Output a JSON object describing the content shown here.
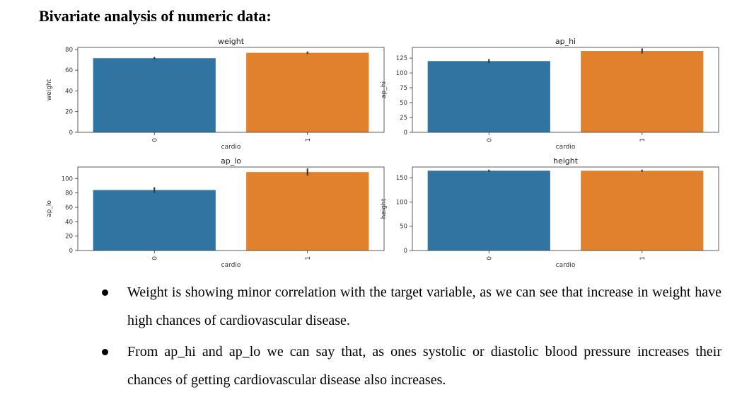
{
  "heading": "Bivariate analysis of numeric data:",
  "colors": {
    "class0": "#3274a1",
    "class1": "#e1812c",
    "errorbar": "#3a3a3a",
    "axis": "#333333"
  },
  "chart_data": [
    {
      "type": "bar",
      "title": "weight",
      "xlabel": "cardio",
      "ylabel": "weight",
      "categories": [
        "0",
        "1"
      ],
      "values": [
        71.6,
        76.8
      ],
      "errors": [
        0.2,
        0.2
      ],
      "ylim": [
        0,
        82
      ],
      "yticks": [
        0,
        20,
        40,
        60,
        80
      ],
      "show_xlabel": true,
      "grid": false
    },
    {
      "type": "bar",
      "title": "ap_hi",
      "xlabel": "cardio",
      "ylabel": "ap_hi",
      "categories": [
        "0",
        "1"
      ],
      "values": [
        120,
        137
      ],
      "errors": [
        1.5,
        2.5
      ],
      "ylim": [
        0,
        143
      ],
      "yticks": [
        0,
        25,
        50,
        75,
        100,
        125
      ],
      "show_xlabel": true,
      "grid": false
    },
    {
      "type": "bar",
      "title": "ap_lo",
      "xlabel": "cardio",
      "ylabel": "ap_lo",
      "categories": [
        "0",
        "1"
      ],
      "values": [
        84,
        109
      ],
      "errors": [
        2.5,
        3.5
      ],
      "ylim": [
        0,
        116
      ],
      "yticks": [
        0,
        20,
        40,
        60,
        80,
        100
      ],
      "show_xlabel": true,
      "grid": false
    },
    {
      "type": "bar",
      "title": "height",
      "xlabel": "cardio",
      "ylabel": "height",
      "categories": [
        "0",
        "1"
      ],
      "values": [
        164.4,
        164.3
      ],
      "errors": [
        0.1,
        0.1
      ],
      "ylim": [
        0,
        172
      ],
      "yticks": [
        0,
        50,
        100,
        150
      ],
      "show_xlabel": true,
      "grid": false
    }
  ],
  "bullets": [
    "Weight is showing minor correlation with the target variable, as we can see that increase in weight have high chances of cardiovascular disease.",
    "From ap_hi and ap_lo we can say that, as ones systolic or diastolic blood pressure increases their chances of getting cardiovascular disease also increases."
  ]
}
